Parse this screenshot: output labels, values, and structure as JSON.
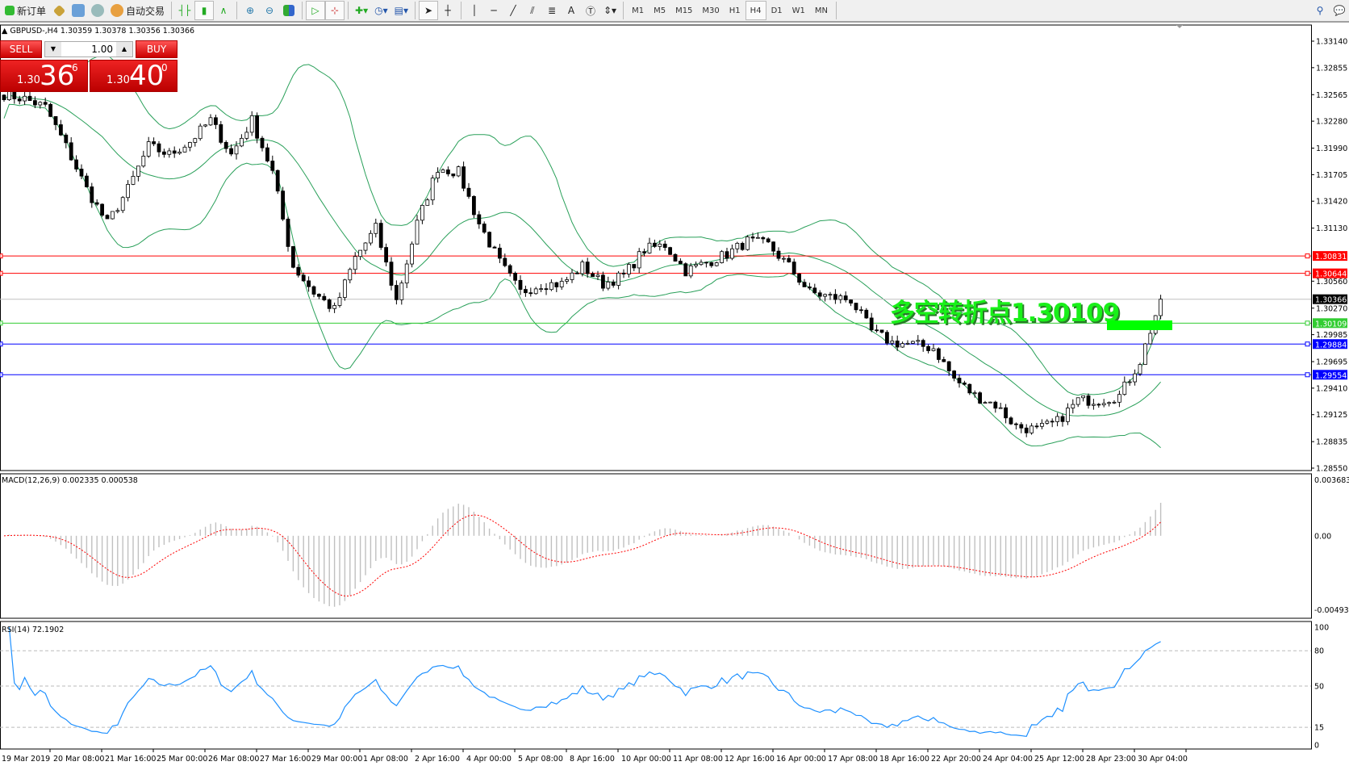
{
  "toolbar": {
    "new_order": "新订单",
    "auto_trading": "自动交易",
    "timeframes": [
      "M1",
      "M5",
      "M15",
      "M30",
      "H1",
      "H4",
      "D1",
      "W1",
      "MN"
    ],
    "active_timeframe": "H4",
    "text_tool": "A"
  },
  "chart": {
    "symbol_info": "GBPUSD-,H4  1.30359 1.30378 1.30356 1.30366",
    "annotation": "多空转折点1.30109",
    "colors": {
      "bull": "#ffffff",
      "bear": "#000000",
      "bands": "#2aa05a",
      "macd_signal": "#ff0000",
      "macd_hist": "#c0c0c0",
      "rsi": "#1e90ff"
    }
  },
  "trade_panel": {
    "sell_label": "SELL",
    "buy_label": "BUY",
    "volume": "1.00",
    "sell_big": "1.30",
    "sell_pips": "36",
    "sell_frac": "6",
    "buy_big": "1.30",
    "buy_pips": "40",
    "buy_frac": "0"
  },
  "price_axis": {
    "ticks": [
      "1.33140",
      "1.32855",
      "1.32565",
      "1.32280",
      "1.31990",
      "1.31705",
      "1.31420",
      "1.31130",
      "1.30560",
      "1.30270",
      "1.29985",
      "1.29695",
      "1.29410",
      "1.29125",
      "1.28835",
      "1.28550"
    ],
    "range": [
      1.2855,
      1.3314
    ]
  },
  "levels": [
    {
      "price": "1.30831",
      "color": "#ff0000"
    },
    {
      "price": "1.30644",
      "color": "#ff0000"
    },
    {
      "price": "1.30366",
      "color": "#000000",
      "line": "#c0c0c0"
    },
    {
      "price": "1.30109",
      "color": "#32cd32"
    },
    {
      "price": "1.29884",
      "color": "#0000ff"
    },
    {
      "price": "1.29554",
      "color": "#0000ff"
    }
  ],
  "macd": {
    "label": "MACD(12,26,9) 0.002335 0.000538",
    "ticks": [
      "0.003683",
      "0.00",
      "-0.004933"
    ],
    "range": [
      -0.004933,
      0.003683
    ]
  },
  "rsi": {
    "label": "RSI(14) 72.1902",
    "ticks": [
      "100",
      "80",
      "50",
      "15",
      "0"
    ],
    "levels": [
      80,
      50,
      15
    ]
  },
  "time_axis": [
    "19 Mar 2019",
    "20 Mar 08:00",
    "21 Mar 16:00",
    "25 Mar 00:00",
    "26 Mar 08:00",
    "27 Mar 16:00",
    "29 Mar 00:00",
    "1 Apr 08:00",
    "2 Apr 16:00",
    "4 Apr 00:00",
    "5 Apr 08:00",
    "8 Apr 16:00",
    "10 Apr 00:00",
    "11 Apr 08:00",
    "12 Apr 16:00",
    "16 Apr 00:00",
    "17 Apr 08:00",
    "18 Apr 16:00",
    "22 Apr 20:00",
    "24 Apr 04:00",
    "25 Apr 12:00",
    "28 Apr 23:00",
    "30 Apr 04:00"
  ],
  "chart_data": {
    "type": "candlestick",
    "last_ohlc": [
      1.30359,
      1.30378,
      1.30356,
      1.30366
    ],
    "close_approx": [
      1.3257,
      1.3252,
      1.3243,
      1.3201,
      1.3155,
      1.3118,
      1.3155,
      1.3201,
      1.3192,
      1.3206,
      1.3229,
      1.3192,
      1.3229,
      1.3173,
      1.3072,
      1.3044,
      1.3025,
      1.3081,
      1.3113,
      1.3035,
      1.3118,
      1.3178,
      1.3173,
      1.3118,
      1.3076,
      1.3044,
      1.3053,
      1.3053,
      1.3072,
      1.3053,
      1.3062,
      1.309,
      1.3095,
      1.3067,
      1.3076,
      1.3085,
      1.3099,
      1.3095,
      1.3072,
      1.3044,
      1.3039,
      1.3036,
      1.3002,
      1.299,
      1.2988,
      1.2984,
      1.2951,
      1.2933,
      1.2923,
      1.29,
      1.2896,
      1.2905,
      1.2928,
      1.2928,
      1.2933,
      1.297,
      1.3036
    ]
  }
}
